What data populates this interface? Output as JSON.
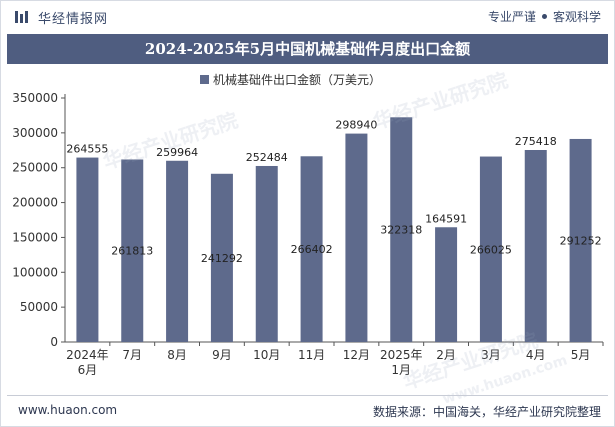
{
  "header": {
    "brand": "华经情报网",
    "tagline_left": "专业严谨",
    "tagline_right": "客观科学"
  },
  "title": "2024-2025年5月中国机械基础件月度出口金额",
  "footer": {
    "site": "www.huaon.com",
    "source": "数据来源：中国海关，华经产业研究院整理"
  },
  "watermark": "华经产业研究院",
  "watermark_url": "www.huaon.com",
  "colors": {
    "bar": "#5e6a8c",
    "title_bg": "#4f5d80"
  },
  "chart_data": {
    "type": "bar",
    "title": "2024-2025年5月中国机械基础件月度出口金额",
    "categories": [
      "2024年\n6月",
      "7月",
      "8月",
      "9月",
      "10月",
      "11月",
      "12月",
      "2025年\n1月",
      "2月",
      "3月",
      "4月",
      "5月"
    ],
    "series": [
      {
        "name": "机械基础件出口金额（万美元）",
        "values": [
          264555,
          261813,
          259964,
          241292,
          252484,
          266402,
          298940,
          322318,
          164591,
          266025,
          275418,
          291252
        ]
      }
    ],
    "label_position": [
      "above",
      "inside",
      "above",
      "inside",
      "above",
      "inside",
      "above",
      "inside",
      "above",
      "inside",
      "above",
      "inside"
    ],
    "ylim": [
      0,
      350000
    ],
    "yticks": [
      0,
      50000,
      100000,
      150000,
      200000,
      250000,
      300000,
      350000
    ],
    "legend": "top-center",
    "grid": false
  }
}
